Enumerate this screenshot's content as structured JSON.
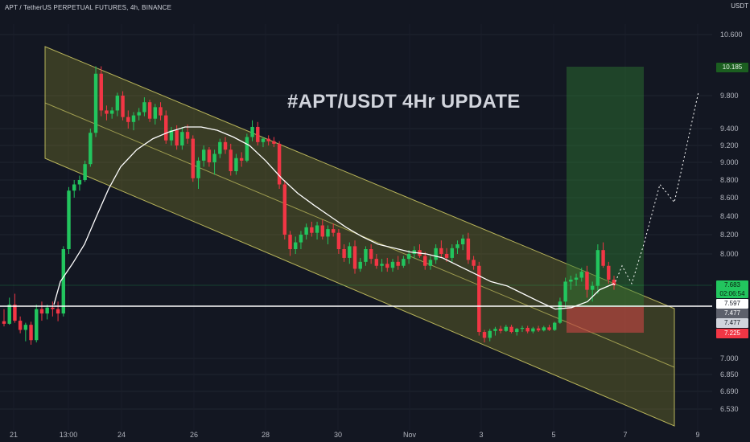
{
  "header": {
    "symbol_line": "APT / TetherUS PERPETUAL FUTURES, 4h, BINANCE",
    "currency": "USDT"
  },
  "annotation": {
    "headline": "#APT/USDT 4Hr UPDATE"
  },
  "price_tags": {
    "target": "10.185",
    "last_price": "7.683",
    "countdown": "02:06:54",
    "level_a": "7.597",
    "level_b": "7.477",
    "level_c": "7.477",
    "stop": "7.225"
  },
  "colors": {
    "background": "#131722",
    "up": "#22c55e",
    "down": "#f23645",
    "channel_fill": "#8b8b2a",
    "target_zone": "#2e7d32",
    "stop_zone": "#c44"
  },
  "chart_data": {
    "type": "candlestick",
    "y_axis": {
      "scale": "log",
      "ticks": [
        10.6,
        9.8,
        9.4,
        9.2,
        9.0,
        8.8,
        8.6,
        8.4,
        8.2,
        8.0,
        7.0,
        6.85,
        6.69,
        6.53
      ],
      "tick_labels": [
        "10.600",
        "9.800",
        "9.400",
        "9.200",
        "9.000",
        "8.800",
        "8.600",
        "8.400",
        "8.200",
        "8.000",
        "7.000",
        "6.850",
        "6.690",
        "6.530"
      ]
    },
    "x_axis": {
      "tick_labels": [
        "21",
        "13:00",
        "24",
        "26",
        "28",
        "30",
        "Nov",
        "3",
        "5",
        "7",
        "9"
      ]
    },
    "candles": [
      [
        7.45,
        7.55,
        7.35,
        7.4
      ],
      [
        7.4,
        7.62,
        7.38,
        7.58
      ],
      [
        7.58,
        7.64,
        7.42,
        7.46
      ],
      [
        7.46,
        7.5,
        7.22,
        7.28
      ],
      [
        7.28,
        7.42,
        7.15,
        7.38
      ],
      [
        7.38,
        7.44,
        7.12,
        7.16
      ],
      [
        7.16,
        7.58,
        7.14,
        7.55
      ],
      [
        7.55,
        7.6,
        7.46,
        7.52
      ],
      [
        7.52,
        7.58,
        7.48,
        7.56
      ],
      [
        7.56,
        7.6,
        7.5,
        7.55
      ],
      [
        7.55,
        7.6,
        7.45,
        7.52
      ],
      [
        7.52,
        8.08,
        7.5,
        8.05
      ],
      [
        8.05,
        8.72,
        8.0,
        8.68
      ],
      [
        8.68,
        8.8,
        8.6,
        8.75
      ],
      [
        8.75,
        8.85,
        8.68,
        8.8
      ],
      [
        8.8,
        9.02,
        8.78,
        8.98
      ],
      [
        8.98,
        9.4,
        8.95,
        9.35
      ],
      [
        9.35,
        10.2,
        9.3,
        10.1
      ],
      [
        10.1,
        10.2,
        9.55,
        9.62
      ],
      [
        9.62,
        9.68,
        9.5,
        9.58
      ],
      [
        9.58,
        9.66,
        9.52,
        9.62
      ],
      [
        9.62,
        9.84,
        9.55,
        9.8
      ],
      [
        9.8,
        9.86,
        9.5,
        9.54
      ],
      [
        9.54,
        9.62,
        9.4,
        9.48
      ],
      [
        9.48,
        9.6,
        9.38,
        9.56
      ],
      [
        9.56,
        9.65,
        9.5,
        9.6
      ],
      [
        9.6,
        9.78,
        9.55,
        9.72
      ],
      [
        9.72,
        9.75,
        9.48,
        9.52
      ],
      [
        9.52,
        9.7,
        9.45,
        9.66
      ],
      [
        9.66,
        9.72,
        9.5,
        9.56
      ],
      [
        9.56,
        9.62,
        9.22,
        9.26
      ],
      [
        9.26,
        9.42,
        9.2,
        9.38
      ],
      [
        9.38,
        9.44,
        9.15,
        9.2
      ],
      [
        9.2,
        9.42,
        9.15,
        9.36
      ],
      [
        9.36,
        9.45,
        9.22,
        9.28
      ],
      [
        9.28,
        9.32,
        8.78,
        8.82
      ],
      [
        8.82,
        9.06,
        8.7,
        9.02
      ],
      [
        9.02,
        9.2,
        8.95,
        9.15
      ],
      [
        9.15,
        9.18,
        8.95,
        9.0
      ],
      [
        9.0,
        9.15,
        8.86,
        9.1
      ],
      [
        9.1,
        9.28,
        9.05,
        9.24
      ],
      [
        9.24,
        9.3,
        9.1,
        9.15
      ],
      [
        9.15,
        9.22,
        8.85,
        8.9
      ],
      [
        8.9,
        9.1,
        8.86,
        9.05
      ],
      [
        9.05,
        9.12,
        8.95,
        9.02
      ],
      [
        9.02,
        9.34,
        9.0,
        9.3
      ],
      [
        9.3,
        9.5,
        9.25,
        9.42
      ],
      [
        9.42,
        9.48,
        9.2,
        9.24
      ],
      [
        9.24,
        9.3,
        9.18,
        9.28
      ],
      [
        9.28,
        9.32,
        9.2,
        9.25
      ],
      [
        9.25,
        9.3,
        9.18,
        9.22
      ],
      [
        9.22,
        9.25,
        8.7,
        8.75
      ],
      [
        8.75,
        8.8,
        8.15,
        8.2
      ],
      [
        8.2,
        8.24,
        7.98,
        8.05
      ],
      [
        8.05,
        8.18,
        8.0,
        8.12
      ],
      [
        8.12,
        8.24,
        8.05,
        8.2
      ],
      [
        8.2,
        8.32,
        8.15,
        8.28
      ],
      [
        8.28,
        8.34,
        8.18,
        8.22
      ],
      [
        8.22,
        8.34,
        8.15,
        8.3
      ],
      [
        8.3,
        8.36,
        8.15,
        8.18
      ],
      [
        8.18,
        8.3,
        8.1,
        8.26
      ],
      [
        8.26,
        8.32,
        8.18,
        8.22
      ],
      [
        8.22,
        8.26,
        8.0,
        8.05
      ],
      [
        8.05,
        8.1,
        7.92,
        7.96
      ],
      [
        7.96,
        8.12,
        7.9,
        8.08
      ],
      [
        8.08,
        8.14,
        7.8,
        7.85
      ],
      [
        7.85,
        7.96,
        7.82,
        7.92
      ],
      [
        7.92,
        8.08,
        7.88,
        8.05
      ],
      [
        8.05,
        8.1,
        7.9,
        7.95
      ],
      [
        7.95,
        8.0,
        7.85,
        7.88
      ],
      [
        7.88,
        7.95,
        7.82,
        7.9
      ],
      [
        7.9,
        7.96,
        7.82,
        7.86
      ],
      [
        7.86,
        7.95,
        7.82,
        7.92
      ],
      [
        7.92,
        7.98,
        7.84,
        7.88
      ],
      [
        7.88,
        7.98,
        7.86,
        7.95
      ],
      [
        7.95,
        8.04,
        7.9,
        8.0
      ],
      [
        8.0,
        8.08,
        7.95,
        8.04
      ],
      [
        8.04,
        8.1,
        7.96,
        7.98
      ],
      [
        7.98,
        8.02,
        7.84,
        7.88
      ],
      [
        7.88,
        7.98,
        7.84,
        7.94
      ],
      [
        7.94,
        8.1,
        7.9,
        8.06
      ],
      [
        8.06,
        8.14,
        7.96,
        8.0
      ],
      [
        8.0,
        8.06,
        7.92,
        7.96
      ],
      [
        7.96,
        8.1,
        7.92,
        8.06
      ],
      [
        8.06,
        8.14,
        8.0,
        8.1
      ],
      [
        8.1,
        8.2,
        8.04,
        8.16
      ],
      [
        8.16,
        8.22,
        7.9,
        7.94
      ],
      [
        7.94,
        7.98,
        7.84,
        7.88
      ],
      [
        7.88,
        7.92,
        7.2,
        7.24
      ],
      [
        7.24,
        7.28,
        7.14,
        7.18
      ],
      [
        7.18,
        7.3,
        7.15,
        7.26
      ],
      [
        7.26,
        7.34,
        7.2,
        7.3
      ],
      [
        7.3,
        7.36,
        7.22,
        7.26
      ],
      [
        7.26,
        7.38,
        7.24,
        7.34
      ],
      [
        7.34,
        7.38,
        7.22,
        7.24
      ],
      [
        7.24,
        7.32,
        7.2,
        7.3
      ],
      [
        7.3,
        7.36,
        7.24,
        7.32
      ],
      [
        7.32,
        7.36,
        7.22,
        7.25
      ],
      [
        7.25,
        7.34,
        7.22,
        7.31
      ],
      [
        7.31,
        7.36,
        7.24,
        7.27
      ],
      [
        7.27,
        7.36,
        7.25,
        7.33
      ],
      [
        7.33,
        7.38,
        7.26,
        7.28
      ],
      [
        7.28,
        7.44,
        7.26,
        7.42
      ],
      [
        7.42,
        7.62,
        7.4,
        7.6
      ],
      [
        7.6,
        7.76,
        7.56,
        7.72
      ],
      [
        7.72,
        7.78,
        7.66,
        7.74
      ],
      [
        7.74,
        7.8,
        7.68,
        7.76
      ],
      [
        7.76,
        7.86,
        7.72,
        7.82
      ],
      [
        7.82,
        7.88,
        7.62,
        7.66
      ],
      [
        7.66,
        7.72,
        7.6,
        7.68
      ],
      [
        7.68,
        8.1,
        7.64,
        8.04
      ],
      [
        8.04,
        8.12,
        7.86,
        7.88
      ],
      [
        7.88,
        7.92,
        7.7,
        7.74
      ],
      [
        7.74,
        7.78,
        7.66,
        7.683
      ]
    ],
    "moving_average": [
      [
        67,
        7.58
      ],
      [
        75,
        7.72
      ],
      [
        90,
        7.9
      ],
      [
        105,
        8.1
      ],
      [
        120,
        8.4
      ],
      [
        135,
        8.7
      ],
      [
        150,
        8.95
      ],
      [
        170,
        9.15
      ],
      [
        190,
        9.28
      ],
      [
        210,
        9.36
      ],
      [
        230,
        9.42
      ],
      [
        250,
        9.42
      ],
      [
        270,
        9.38
      ],
      [
        290,
        9.3
      ],
      [
        310,
        9.2
      ],
      [
        330,
        9.02
      ],
      [
        350,
        8.82
      ],
      [
        370,
        8.65
      ],
      [
        390,
        8.52
      ],
      [
        410,
        8.4
      ],
      [
        430,
        8.28
      ],
      [
        450,
        8.18
      ],
      [
        470,
        8.1
      ],
      [
        490,
        8.06
      ],
      [
        510,
        8.02
      ],
      [
        530,
        8.0
      ],
      [
        550,
        7.96
      ],
      [
        570,
        7.88
      ],
      [
        590,
        7.8
      ],
      [
        610,
        7.72
      ],
      [
        630,
        7.68
      ],
      [
        650,
        7.64
      ],
      [
        670,
        7.6
      ],
      [
        690,
        7.55
      ],
      [
        710,
        7.56
      ],
      [
        730,
        7.6
      ],
      [
        745,
        7.66
      ],
      [
        763,
        7.7
      ]
    ],
    "levels": {
      "support": 7.597,
      "channel": "descending parallel channel",
      "target_zone_top": 10.185,
      "entry": 7.477,
      "stop": 7.225
    },
    "projection": [
      [
        763,
        7.683
      ],
      [
        773,
        7.88
      ],
      [
        785,
        7.7
      ],
      [
        800,
        8.1
      ],
      [
        820,
        8.75
      ],
      [
        838,
        8.55
      ],
      [
        868,
        9.85
      ]
    ]
  }
}
